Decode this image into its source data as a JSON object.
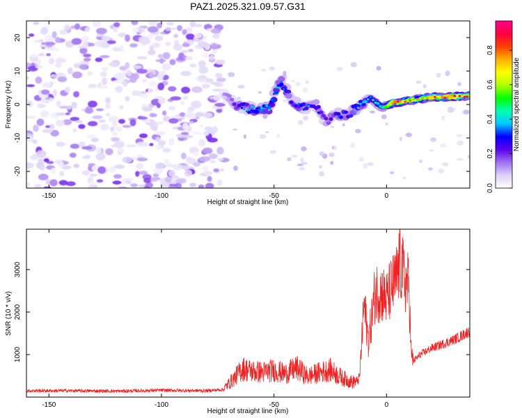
{
  "chart_data": [
    {
      "type": "heatmap",
      "title": "PAZ1.2025.321.09.57.G31",
      "xlabel": "Height of straight line (km)",
      "ylabel": "Frequency (Hz)",
      "xlim": [
        -160,
        37
      ],
      "ylim": [
        -25,
        25
      ],
      "xticks": [
        -150,
        -100,
        -50,
        0
      ],
      "yticks": [
        -20,
        -10,
        0,
        10,
        20
      ],
      "colorbar": {
        "label": "Normalized spectral amplitude",
        "range": [
          0,
          0.97
        ],
        "ticks": [
          0.0,
          0.2,
          0.4,
          0.6,
          0.8
        ],
        "colormap": [
          "#ffffff",
          "#ddd0f6",
          "#a070f0",
          "#5a00ee",
          "#0000ff",
          "#00c8ff",
          "#00ffb0",
          "#00ff00",
          "#b0ff00",
          "#ffff00",
          "#ffb000",
          "#ff4000",
          "#ff0040",
          "#ff0090"
        ]
      },
      "ridge": {
        "x": [
          -72,
          -67,
          -62,
          -57,
          -52,
          -47,
          -42,
          -37,
          -32,
          -27,
          -22,
          -17,
          -12,
          -7,
          -2,
          3,
          8,
          13,
          18,
          23,
          28,
          33,
          37
        ],
        "freq": [
          3.5,
          0,
          -1,
          -2,
          -1,
          7.5,
          1,
          -1,
          0.5,
          -5,
          -3,
          -3,
          0,
          2,
          -1,
          0.5,
          1,
          1.5,
          2,
          2.2,
          2.3,
          2.4,
          2.5
        ],
        "amplitude": [
          0.15,
          0.28,
          0.35,
          0.38,
          0.45,
          0.38,
          0.32,
          0.36,
          0.3,
          0.25,
          0.32,
          0.3,
          0.45,
          0.4,
          0.55,
          0.9,
          0.85,
          0.7,
          0.75,
          0.85,
          0.9,
          0.88,
          0.85
        ]
      }
    },
    {
      "type": "line",
      "xlabel": "Height of straight line (km)",
      "ylabel": "SNR (10 * v/v)",
      "xlim": [
        -160,
        37
      ],
      "ylim": [
        0,
        3950
      ],
      "xticks": [
        -150,
        -100,
        -50,
        0
      ],
      "yticks": [
        1000,
        2000,
        3000
      ],
      "color": "#ee2222",
      "x": [
        -160,
        -140,
        -120,
        -100,
        -80,
        -72,
        -68,
        -64,
        -60,
        -55,
        -50,
        -45,
        -40,
        -35,
        -30,
        -25,
        -20,
        -15,
        -12,
        -10,
        -8,
        -5,
        -2,
        0,
        2,
        4,
        6,
        8,
        10,
        11,
        12,
        15,
        20,
        25,
        30,
        37
      ],
      "y": [
        150,
        150,
        140,
        160,
        150,
        180,
        350,
        550,
        500,
        480,
        520,
        450,
        560,
        400,
        470,
        520,
        380,
        280,
        450,
        2200,
        1300,
        2500,
        2450,
        2300,
        2550,
        2700,
        3200,
        2750,
        2600,
        950,
        850,
        1000,
        1150,
        1250,
        1350,
        1550
      ]
    }
  ]
}
